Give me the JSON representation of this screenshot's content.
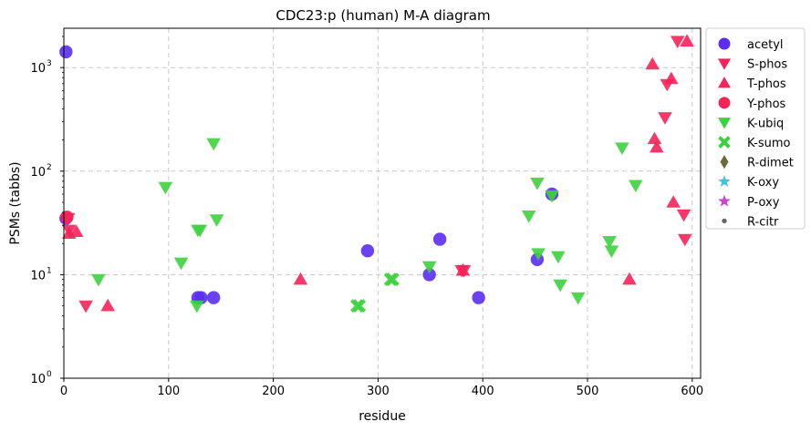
{
  "chart_data": {
    "type": "scatter",
    "title": "CDC23:p (human) M-A diagram",
    "xlabel": "residue",
    "ylabel": "PSMs (tabbs)",
    "xlim": [
      0,
      608
    ],
    "ylim": [
      1,
      2400
    ],
    "yscale": "log",
    "grid": true,
    "legend_position": "outside-right",
    "x_ticks": [
      0,
      100,
      200,
      300,
      400,
      500,
      600
    ],
    "y_ticks": [
      {
        "value": 1,
        "label": "10",
        "exp": "0"
      },
      {
        "value": 10,
        "label": "10",
        "exp": "1"
      },
      {
        "value": 100,
        "label": "10",
        "exp": "2"
      },
      {
        "value": 1000,
        "label": "10",
        "exp": "3"
      }
    ],
    "series": [
      {
        "name": "acetyl",
        "marker": "circle",
        "color": "#5a2df0",
        "points": [
          [
            2,
            1420
          ],
          [
            2,
            35
          ],
          [
            128,
            6
          ],
          [
            131,
            6
          ],
          [
            143,
            6
          ],
          [
            290,
            17
          ],
          [
            349,
            10
          ],
          [
            359,
            22
          ],
          [
            396,
            6
          ],
          [
            452,
            14
          ],
          [
            466,
            60
          ]
        ]
      },
      {
        "name": "S-phos",
        "marker": "triangle-down",
        "color": "#f5245a",
        "points": [
          [
            4,
            35
          ],
          [
            5,
            27
          ],
          [
            21,
            5
          ],
          [
            380,
            11
          ],
          [
            382,
            11
          ],
          [
            574,
            330
          ],
          [
            576,
            690
          ],
          [
            586,
            1800
          ],
          [
            592,
            38
          ],
          [
            593,
            22
          ]
        ]
      },
      {
        "name": "T-phos",
        "marker": "triangle-up",
        "color": "#f5245a",
        "points": [
          [
            5,
            25
          ],
          [
            12,
            26
          ],
          [
            42,
            5
          ],
          [
            226,
            9
          ],
          [
            381,
            11
          ],
          [
            540,
            9
          ],
          [
            562,
            1080
          ],
          [
            564,
            205
          ],
          [
            566,
            170
          ],
          [
            580,
            780
          ],
          [
            582,
            50
          ],
          [
            595,
            1800
          ]
        ]
      },
      {
        "name": "Y-phos",
        "marker": "circle",
        "color": "#f5245a",
        "points": [
          [
            3,
            36
          ]
        ]
      },
      {
        "name": "K-ubiq",
        "marker": "triangle-down",
        "color": "#3ed13e",
        "points": [
          [
            33,
            9
          ],
          [
            97,
            70
          ],
          [
            112,
            13
          ],
          [
            127,
            5
          ],
          [
            128,
            27
          ],
          [
            130,
            27
          ],
          [
            143,
            185
          ],
          [
            146,
            34
          ],
          [
            349,
            12
          ],
          [
            444,
            37
          ],
          [
            452,
            77
          ],
          [
            453,
            16
          ],
          [
            466,
            58
          ],
          [
            472,
            15
          ],
          [
            474,
            8
          ],
          [
            491,
            6
          ],
          [
            521,
            21
          ],
          [
            523,
            17
          ],
          [
            533,
            168
          ],
          [
            546,
            73
          ]
        ]
      },
      {
        "name": "K-sumo",
        "marker": "x",
        "color": "#3ed13e",
        "points": [
          [
            280,
            5
          ],
          [
            282,
            5
          ],
          [
            312,
            9
          ],
          [
            314,
            9
          ]
        ]
      },
      {
        "name": "R-dimet",
        "marker": "diamond",
        "color": "#6b6b3a",
        "points": []
      },
      {
        "name": "K-oxy",
        "marker": "star",
        "color": "#3fc6d6",
        "points": []
      },
      {
        "name": "P-oxy",
        "marker": "star",
        "color": "#cc44cc",
        "points": []
      },
      {
        "name": "R-citr",
        "marker": "dot",
        "color": "#666666",
        "points": []
      }
    ]
  }
}
